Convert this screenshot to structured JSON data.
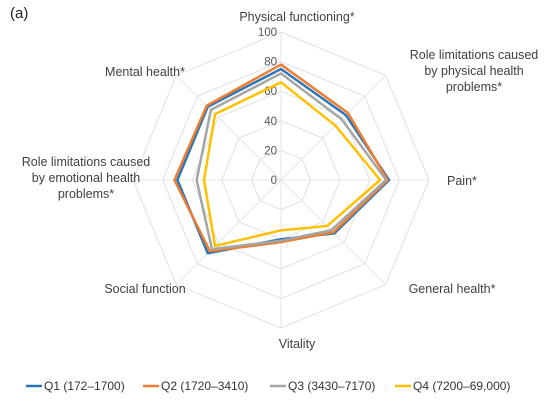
{
  "panel_label": "(a)",
  "chart_data": {
    "type": "radar",
    "title": "",
    "categories": [
      "Physical functioning*",
      "Role limitations caused by physical health problems*",
      "Pain*",
      "General health*",
      "Vitality",
      "Social function",
      "Role limitations caused by emotional health problems*",
      "Mental health*"
    ],
    "ticks": [
      0,
      20,
      40,
      60,
      80,
      100
    ],
    "range": [
      0,
      100
    ],
    "grid": true,
    "legend_position": "bottom",
    "series": [
      {
        "name": "Q1 (172–1700)",
        "color": "#2E75B6",
        "values": [
          75,
          62,
          73,
          51,
          40,
          70,
          70,
          70
        ]
      },
      {
        "name": "Q2 (1720–3410)",
        "color": "#ED7D31",
        "values": [
          78,
          64,
          72,
          50,
          42,
          68,
          72,
          71
        ]
      },
      {
        "name": "Q3 (3430–7170)",
        "color": "#A5A5A5",
        "values": [
          72,
          58,
          71,
          48,
          41,
          66,
          57,
          67
        ]
      },
      {
        "name": "Q4 (7200–69,000)",
        "color": "#FFC000",
        "values": [
          66,
          52,
          67,
          44,
          34,
          63,
          52,
          63
        ]
      }
    ]
  }
}
